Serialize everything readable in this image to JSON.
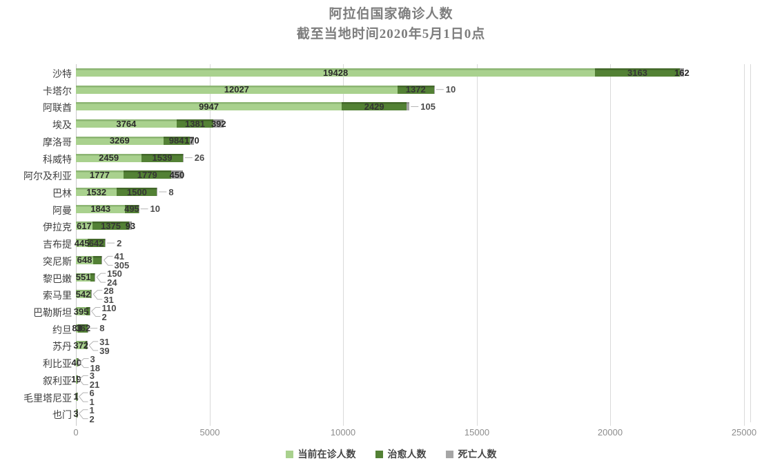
{
  "title": {
    "line1": "阿拉伯国家确诊人数",
    "line2": "截至当地时间2020年5月1日0点"
  },
  "axis": {
    "x_tick_labels": [
      "0",
      "5000",
      "10000",
      "15000",
      "20000",
      "25000"
    ],
    "x_tick_values": [
      0,
      5000,
      10000,
      15000,
      20000,
      25000
    ],
    "x_max": 25000
  },
  "legend": [
    {
      "label": "当前在诊人数",
      "color": "#a9d18e"
    },
    {
      "label": "治愈人数",
      "color": "#538135"
    },
    {
      "label": "死亡人数",
      "color": "#a6a6a6"
    }
  ],
  "colors": {
    "active": "#a9d18e",
    "cured": "#538135",
    "death": "#a6a6a6",
    "gridline": "#d9d9d9",
    "title_text": "#7d7d7d",
    "tick_text": "#8c8c8c"
  },
  "chart_data": {
    "type": "bar",
    "orientation": "horizontal",
    "stacked": true,
    "title": "阿拉伯国家确诊人数 截至当地时间2020年5月1日0点",
    "xlim": [
      0,
      25000
    ],
    "grid": true,
    "legend_position": "bottom",
    "categories": [
      "沙特",
      "卡塔尔",
      "阿联酋",
      "埃及",
      "摩洛哥",
      "科威特",
      "阿尔及利亚",
      "巴林",
      "阿曼",
      "伊拉克",
      "吉布提",
      "突尼斯",
      "黎巴嫩",
      "索马里",
      "巴勒斯坦",
      "约旦",
      "苏丹",
      "利比亚",
      "叙利亚",
      "毛里塔尼亚",
      "也门"
    ],
    "series": [
      {
        "name": "当前在诊人数",
        "color": "#a9d18e",
        "values": [
          19428,
          12027,
          9947,
          3764,
          3269,
          2459,
          1777,
          1532,
          1843,
          617,
          445,
          648,
          551,
          542,
          395,
          83,
          372,
          40,
          19,
          1,
          3
        ]
      },
      {
        "name": "治愈人数",
        "color": "#538135",
        "values": [
          3163,
          1372,
          2429,
          1381,
          984,
          1539,
          1779,
          1500,
          495,
          1375,
          642,
          305,
          150,
          31,
          110,
          362,
          39,
          18,
          21,
          6,
          1
        ]
      },
      {
        "name": "死亡人数",
        "color": "#a6a6a6",
        "values": [
          162,
          10,
          105,
          392,
          170,
          26,
          450,
          8,
          10,
          93,
          2,
          41,
          24,
          28,
          2,
          8,
          31,
          3,
          3,
          1,
          2
        ]
      }
    ],
    "label_layout": [
      {
        "cured": "in",
        "death": "in"
      },
      {
        "cured": "in",
        "death": "end"
      },
      {
        "cured": "in",
        "death": "end"
      },
      {
        "cured": "in",
        "death": "in"
      },
      {
        "cured": "in",
        "death": "in"
      },
      {
        "cured": "in",
        "death": "end"
      },
      {
        "cured": "in",
        "death": "in"
      },
      {
        "cured": "in",
        "death": "end"
      },
      {
        "cured": "in",
        "death": "end"
      },
      {
        "cured": "in",
        "death": "in"
      },
      {
        "cured": "in",
        "death": "end"
      },
      {
        "cured": "callout-bottom",
        "death": "callout-top"
      },
      {
        "cured": "callout-top",
        "death": "callout-bottom"
      },
      {
        "cured": "callout-bottom",
        "death": "callout-top"
      },
      {
        "cured": "callout-top",
        "death": "callout-bottom"
      },
      {
        "cured": "in",
        "death": "end"
      },
      {
        "cured": "callout-bottom",
        "death": "callout-top"
      },
      {
        "cured": "callout-bottom",
        "death": "callout-top"
      },
      {
        "cured": "callout-bottom",
        "death": "callout-top"
      },
      {
        "cured": "callout-top",
        "death": "callout-bottom"
      },
      {
        "cured": "callout-top",
        "death": "callout-bottom"
      }
    ]
  }
}
